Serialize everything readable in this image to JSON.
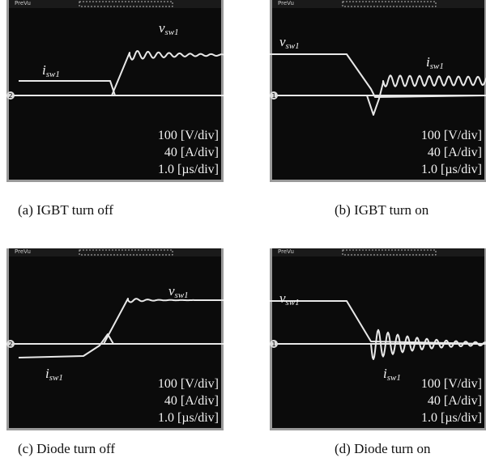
{
  "panels": [
    {
      "caption": "(a) IGBT turn off",
      "scope": {
        "tag": "PreVu",
        "channel": "2",
        "voltage_label": {
          "symbol": "v",
          "subscript": "sw1"
        },
        "current_label": {
          "symbol": "i",
          "subscript": "sw1"
        },
        "scales": [
          "100 [V/div]",
          "40 [A/div]",
          "1.0 [µs/div]"
        ]
      }
    },
    {
      "caption": "(b) IGBT turn on",
      "scope": {
        "tag": "PreVu",
        "channel": "1",
        "voltage_label": {
          "symbol": "v",
          "subscript": "sw1"
        },
        "current_label": {
          "symbol": "i",
          "subscript": "sw1"
        },
        "scales": [
          "100 [V/div]",
          "40 [A/div]",
          "1.0 [µs/div]"
        ]
      }
    },
    {
      "caption": "(c) Diode turn off",
      "scope": {
        "tag": "PreVu",
        "channel": "2",
        "voltage_label": {
          "symbol": "v",
          "subscript": "sw1"
        },
        "current_label": {
          "symbol": "i",
          "subscript": "sw1"
        },
        "scales": [
          "100 [V/div]",
          "40 [A/div]",
          "1.0 [µs/div]"
        ]
      }
    },
    {
      "caption": "(d) Diode turn on",
      "scope": {
        "tag": "PreVu",
        "channel": "1",
        "voltage_label": {
          "symbol": "v",
          "subscript": "sw1"
        },
        "current_label": {
          "symbol": "i",
          "subscript": "sw1"
        },
        "scales": [
          "100 [V/div]",
          "40 [A/div]",
          "1.0 [µs/div]"
        ]
      }
    }
  ]
}
